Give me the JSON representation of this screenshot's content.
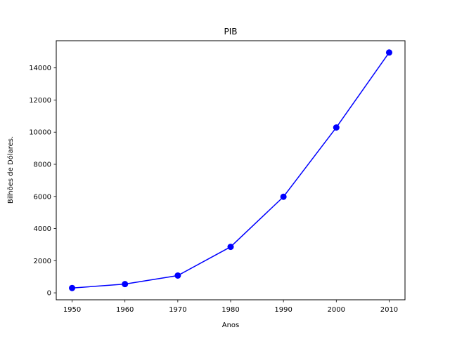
{
  "chart_data": {
    "type": "line",
    "title": "PIB",
    "xlabel": "Anos",
    "ylabel": "Bilhões de Dólares.",
    "x": [
      1950,
      1960,
      1970,
      1980,
      1990,
      2000,
      2010
    ],
    "series": [
      {
        "values": [
          300.2,
          543.3,
          1075.9,
          2862.5,
          5979.6,
          10289.7,
          14958.3
        ],
        "color": "#0000ff",
        "marker": "circle"
      }
    ],
    "xticks": [
      1950,
      1960,
      1970,
      1980,
      1990,
      2000,
      2010
    ],
    "yticks": [
      0,
      2000,
      4000,
      6000,
      8000,
      10000,
      12000,
      14000
    ],
    "xlim": [
      1947,
      2013
    ],
    "ylim": [
      -433,
      15691
    ],
    "grid": false,
    "legend": "none"
  }
}
